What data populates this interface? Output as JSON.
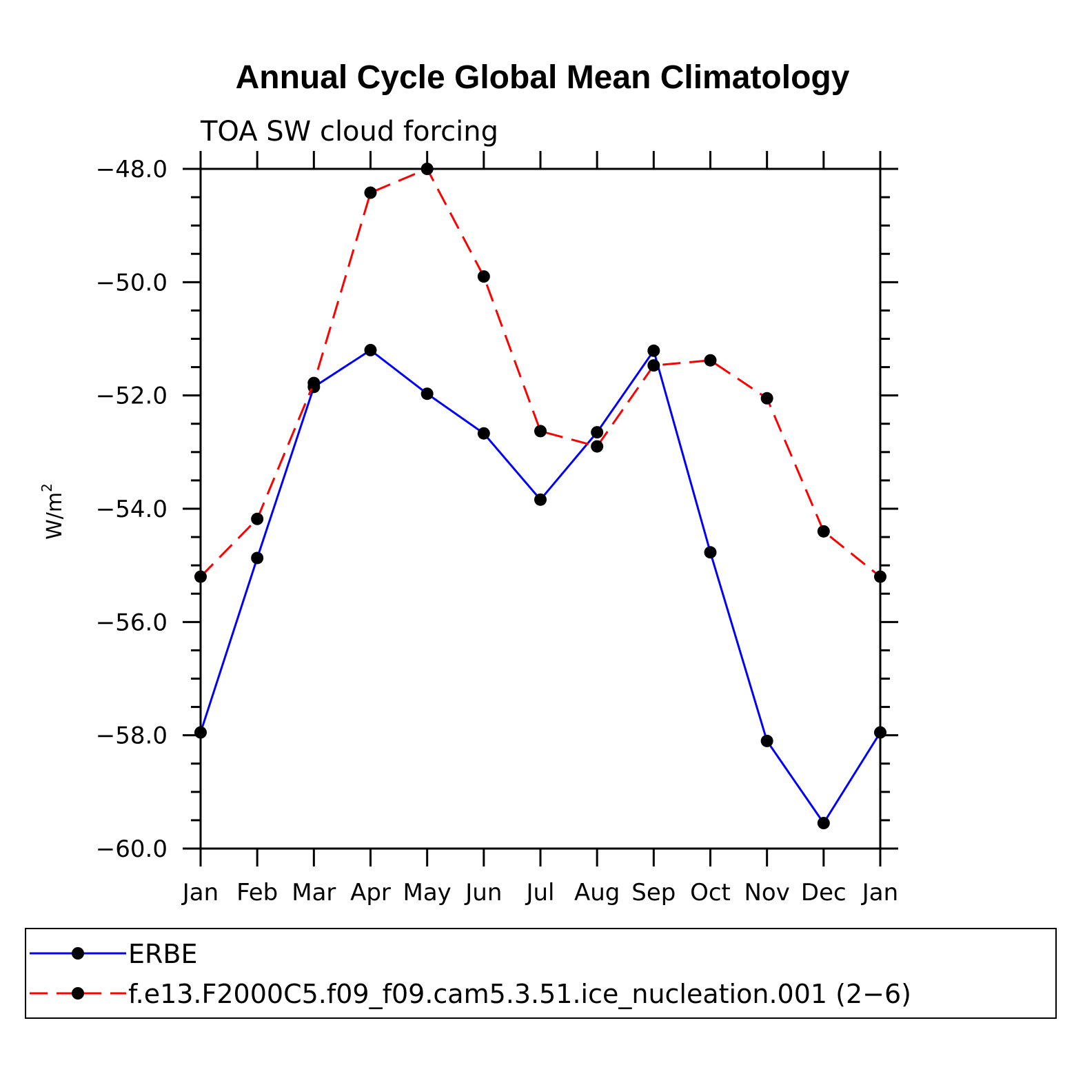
{
  "chart_data": {
    "type": "line",
    "title": "Annual Cycle Global Mean Climatology",
    "subtitle": "TOA SW cloud forcing",
    "xlabel": "",
    "ylabel": "W/m",
    "ylabel_superscript": "2",
    "categories": [
      "Jan",
      "Feb",
      "Mar",
      "Apr",
      "May",
      "Jun",
      "Jul",
      "Aug",
      "Sep",
      "Oct",
      "Nov",
      "Dec",
      "Jan"
    ],
    "ylim": [
      -60.0,
      -48.0
    ],
    "yticks": [
      -48.0,
      -50.0,
      -52.0,
      -54.0,
      -56.0,
      -58.0,
      -60.0
    ],
    "ytick_labels": [
      "−48.0",
      "−50.0",
      "−52.0",
      "−54.0",
      "−56.0",
      "−58.0",
      "−60.0"
    ],
    "series": [
      {
        "name": "ERBE",
        "color": "#0000ff",
        "dash": "solid",
        "values": [
          -57.95,
          -54.87,
          -51.85,
          -51.2,
          -51.97,
          -52.67,
          -53.84,
          -52.65,
          -51.21,
          -54.77,
          -58.1,
          -59.55,
          -57.95
        ]
      },
      {
        "name": "f.e13.F2000C5.f09_f09.cam5.3.51.ice_nucleation.001 (2−6)",
        "color": "#ff0000",
        "dash": "dashed",
        "values": [
          -55.2,
          -54.18,
          -51.78,
          -48.42,
          -48.0,
          -49.9,
          -52.63,
          -52.9,
          -51.47,
          -51.38,
          -52.05,
          -54.4,
          -55.2
        ]
      }
    ],
    "legend_position": "bottom"
  }
}
